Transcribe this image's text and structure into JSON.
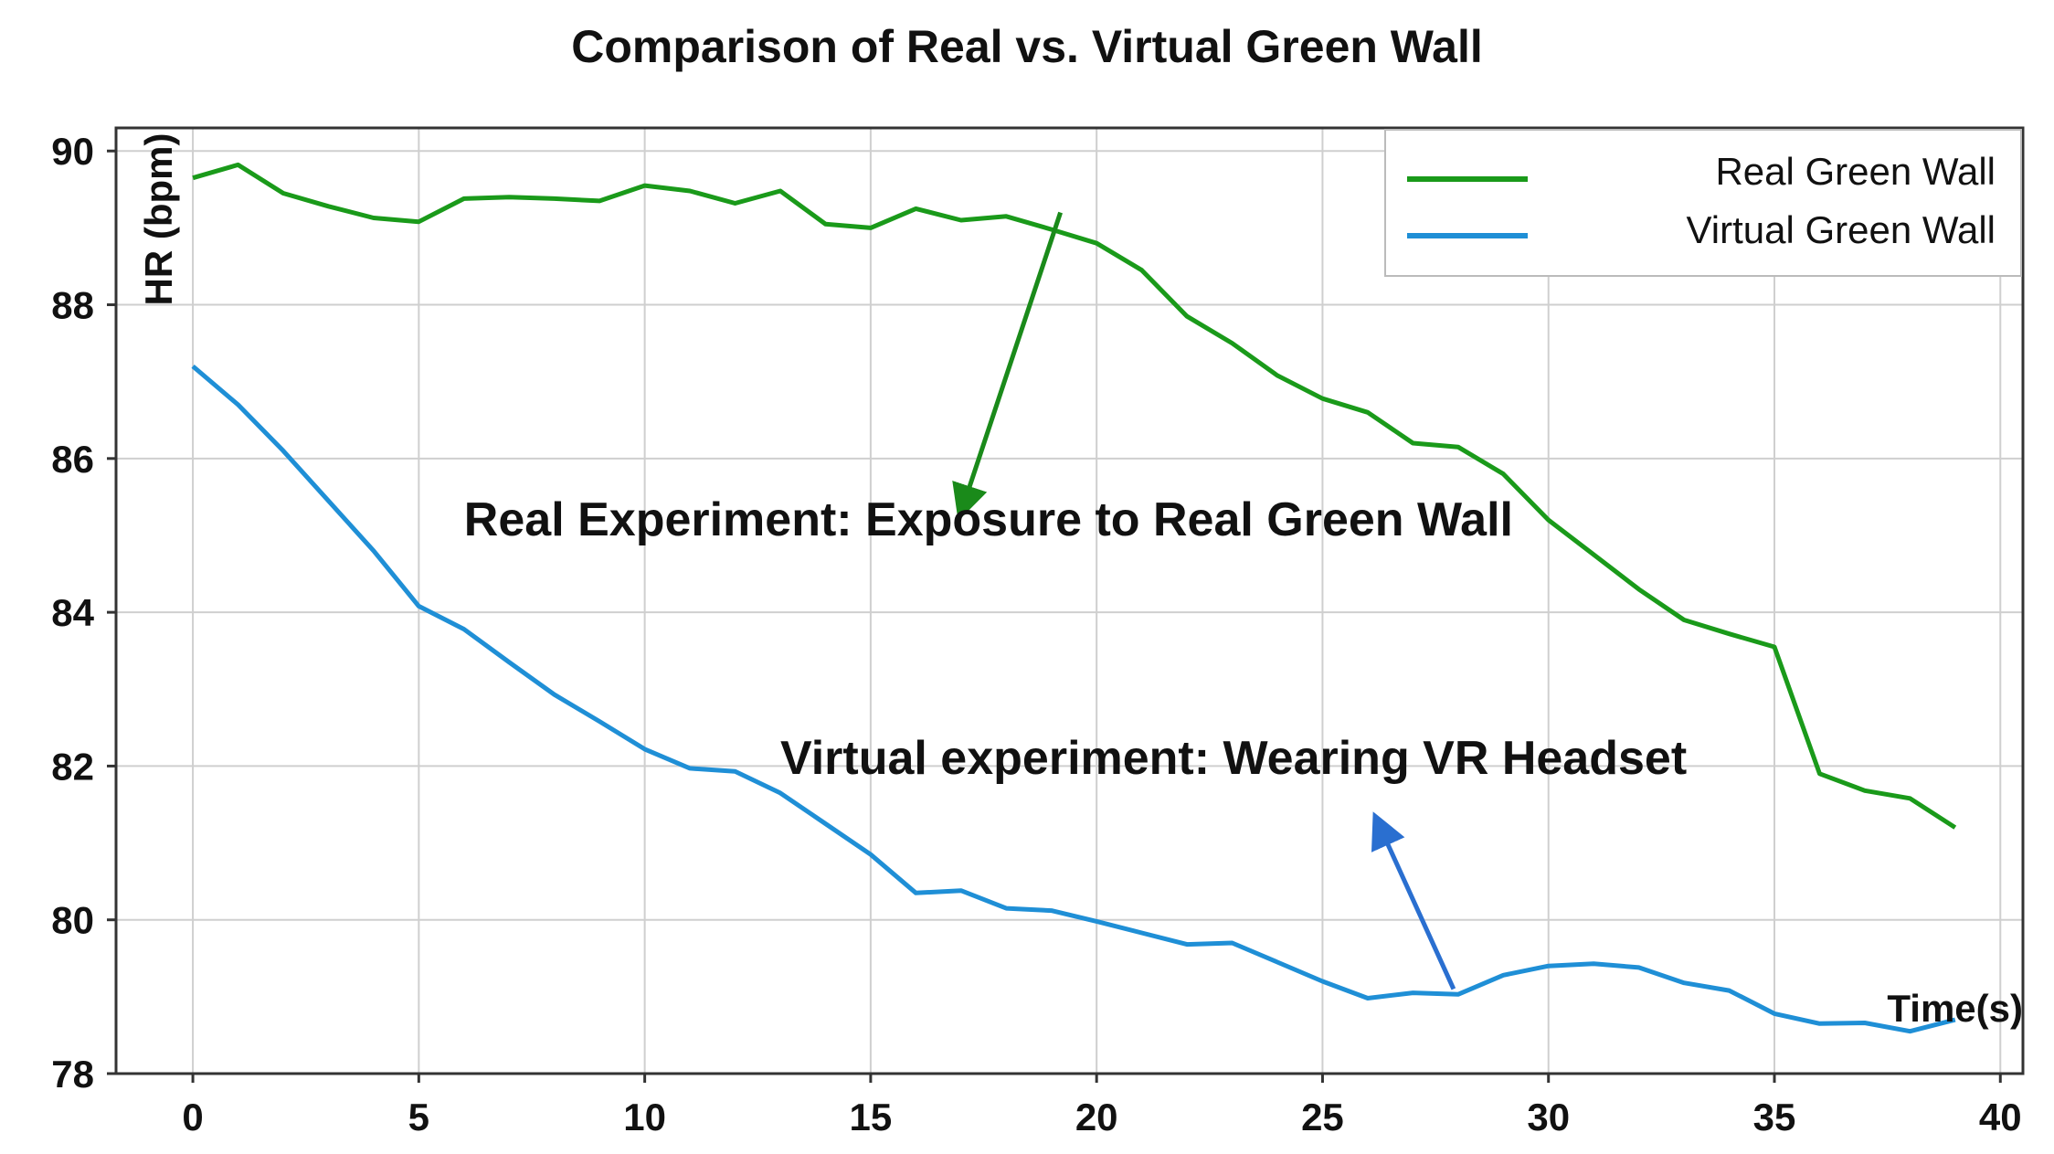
{
  "chart_data": {
    "type": "line",
    "title": "Comparison of Real vs. Virtual Green Wall",
    "xlabel": "Time(s)",
    "ylabel": "HR (bpm)",
    "xlim": [
      -1.7,
      40.5
    ],
    "ylim": [
      78,
      90.3
    ],
    "x_ticks": [
      0,
      5,
      10,
      15,
      20,
      25,
      30,
      35,
      40
    ],
    "y_ticks": [
      78,
      80,
      82,
      84,
      86,
      88,
      90
    ],
    "grid": true,
    "legend_position": "top-right",
    "x": [
      0,
      1,
      2,
      3,
      4,
      5,
      6,
      7,
      8,
      9,
      10,
      11,
      12,
      13,
      14,
      15,
      16,
      17,
      18,
      19,
      20,
      21,
      22,
      23,
      24,
      25,
      26,
      27,
      28,
      29,
      30,
      31,
      32,
      33,
      34,
      35,
      36,
      37,
      38,
      39
    ],
    "series": [
      {
        "name": "Real Green Wall",
        "color": "#1a9a1a",
        "values": [
          89.65,
          89.82,
          89.45,
          89.28,
          89.13,
          89.08,
          89.38,
          89.4,
          89.38,
          89.35,
          89.55,
          89.48,
          89.32,
          89.48,
          89.05,
          89.0,
          89.25,
          89.1,
          89.15,
          88.98,
          88.8,
          88.45,
          87.85,
          87.5,
          87.08,
          86.78,
          86.6,
          86.2,
          86.15,
          85.8,
          85.2,
          84.75,
          84.3,
          83.9,
          83.72,
          83.55,
          81.9,
          81.68,
          81.58,
          81.2
        ]
      },
      {
        "name": "Virtual Green Wall",
        "color": "#1f8fd6",
        "values": [
          87.2,
          86.7,
          86.1,
          85.45,
          84.8,
          84.08,
          83.78,
          83.35,
          82.93,
          82.58,
          82.22,
          81.97,
          81.93,
          81.65,
          81.25,
          80.85,
          80.35,
          80.38,
          80.15,
          80.12,
          79.98,
          79.83,
          79.68,
          79.7,
          79.45,
          79.2,
          78.98,
          79.05,
          79.03,
          79.28,
          79.4,
          79.43,
          79.38,
          79.18,
          79.08,
          78.78,
          78.65,
          78.66,
          78.55,
          78.7
        ]
      }
    ],
    "annotations": [
      {
        "text": "Real Experiment: Exposure to Real Green Wall",
        "color": "#1a8a1a",
        "text_at": [
          6,
          85.0
        ],
        "arrow_from": [
          19.2,
          89.2
        ],
        "arrow_to": [
          17,
          85.3
        ]
      },
      {
        "text": "Virtual experiment: Wearing VR Headset",
        "color": "#2a6fd0",
        "text_at": [
          13,
          81.9
        ],
        "arrow_from": [
          27.9,
          79.1
        ],
        "arrow_to": [
          26.2,
          81.3
        ]
      }
    ]
  }
}
